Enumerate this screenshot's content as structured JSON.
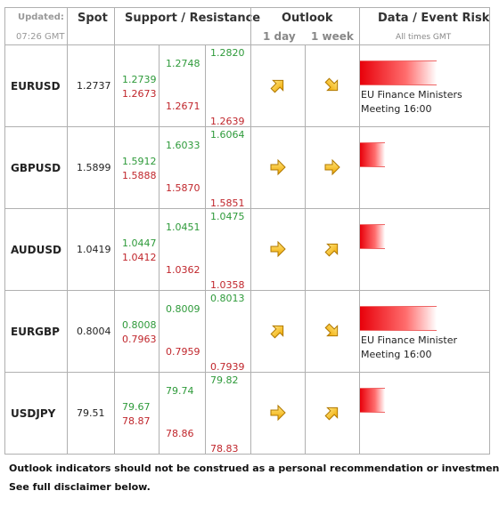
{
  "header": {
    "updated_label": "Updated:",
    "updated_time": "07:26 GMT",
    "spot": "Spot",
    "support_resistance": "Support / Resistance",
    "outlook": "Outlook",
    "outlook_1day": "1 day",
    "outlook_1week": "1 week",
    "event_risk": "Data / Event Risk",
    "event_note": "All times GMT"
  },
  "rows": [
    {
      "pair": "EURUSD",
      "spot": "1.2737",
      "levels": [
        [
          "1.2739",
          "1.2673"
        ],
        [
          "1.2748",
          "1.2671"
        ],
        [
          "1.2820",
          "1.2639"
        ]
      ],
      "event": "EU Finance Ministers Meeting 16:00"
    },
    {
      "pair": "GBPUSD",
      "spot": "1.5899",
      "levels": [
        [
          "1.5912",
          "1.5888"
        ],
        [
          "1.6033",
          "1.5870"
        ],
        [
          "1.6064",
          "1.5851"
        ]
      ]
    },
    {
      "pair": "AUDUSD",
      "spot": "1.0419",
      "levels": [
        [
          "1.0447",
          "1.0412"
        ],
        [
          "1.0451",
          "1.0362"
        ],
        [
          "1.0475",
          "1.0358"
        ]
      ]
    },
    {
      "pair": "EURGBP",
      "spot": "0.8004",
      "levels": [
        [
          "0.8008",
          "0.7963"
        ],
        [
          "0.8009",
          "0.7959"
        ],
        [
          "0.8013",
          "0.7939"
        ]
      ],
      "event": "EU Finance Minister Meeting 16:00"
    },
    {
      "pair": "USDJPY",
      "spot": "79.51",
      "levels": [
        [
          "79.67",
          "78.87"
        ],
        [
          "79.74",
          "78.86"
        ],
        [
          "79.82",
          "78.83"
        ]
      ]
    }
  ],
  "footer": [
    "Outlook indicators should not be construed as a personal recommendation or investment advice.",
    "See full disclaimer below."
  ]
}
